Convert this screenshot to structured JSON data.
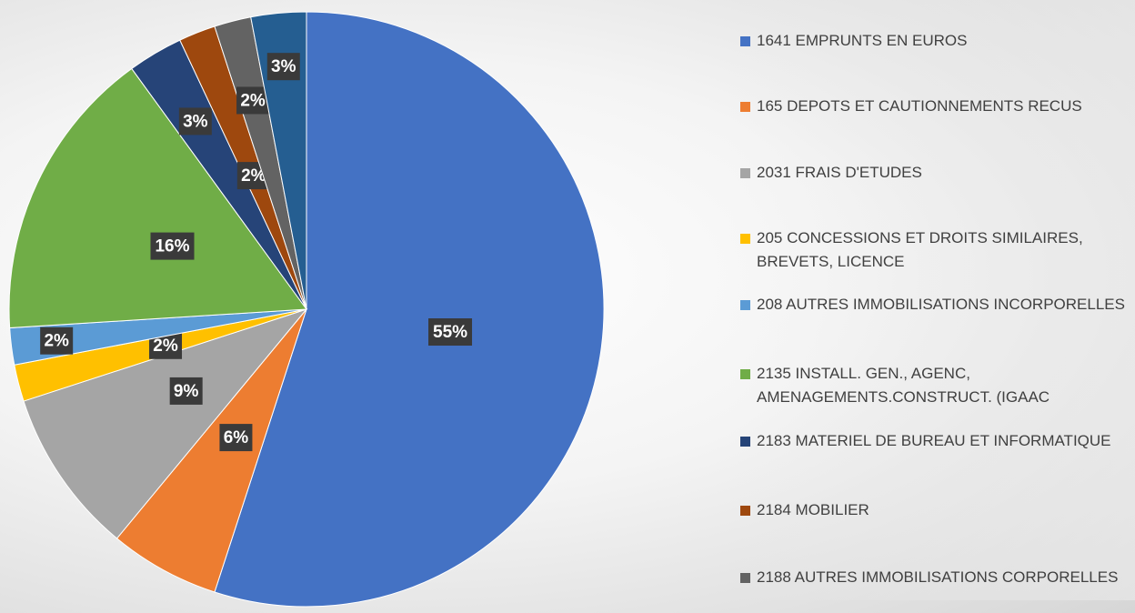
{
  "chart_data": {
    "type": "pie",
    "categories": [
      "1641 EMPRUNTS EN EUROS",
      "165 DEPOTS ET CAUTIONNEMENTS RECUS",
      "2031 FRAIS D'ETUDES",
      "205 CONCESSIONS ET DROITS SIMILAIRES, BREVETS, LICENCE",
      "208 AUTRES IMMOBILISATIONS INCORPORELLES",
      "2135 INSTALL. GEN., AGENC, AMENAGEMENTS.CONSTRUCT. (IGAAC",
      "2183 MATERIEL DE BUREAU ET INFORMATIQUE",
      "2184 MOBILIER",
      "2188 AUTRES IMMOBILISATIONS CORPORELLES",
      null
    ],
    "values": [
      55,
      6,
      9,
      2,
      2,
      16,
      3,
      2,
      2,
      3
    ],
    "value_labels": [
      "55%",
      "6%",
      "9%",
      "2%",
      "2%",
      "16%",
      "3%",
      "2%",
      "2%",
      "3%"
    ],
    "colors": [
      "#4472c4",
      "#ed7d31",
      "#a5a5a5",
      "#ffc000",
      "#5b9bd5",
      "#70ad47",
      "#264478",
      "#9e480e",
      "#636363",
      "#255e91"
    ],
    "legend": "right"
  }
}
